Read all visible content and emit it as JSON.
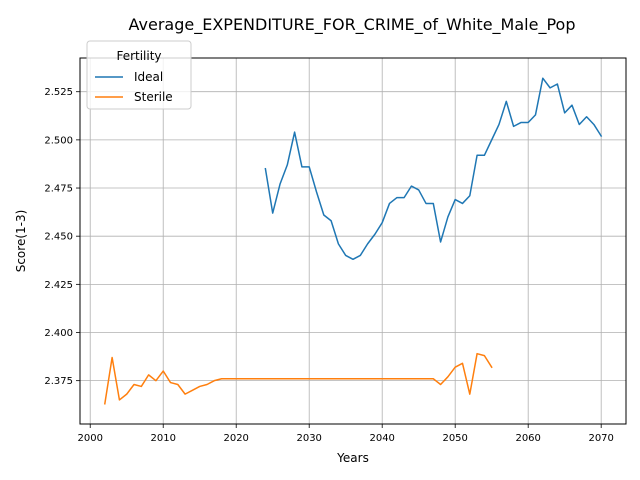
{
  "chart_data": {
    "type": "line",
    "title": "Average_EXPENDITURE_FOR_CRIME_of_White_Male_Pop",
    "xlabel": "Years",
    "ylabel": "Score(1-3)",
    "xlim": [
      1998.6,
      2073.4
    ],
    "ylim": [
      2.3525,
      2.5425
    ],
    "xticks": [
      2000,
      2010,
      2020,
      2030,
      2040,
      2050,
      2060,
      2070
    ],
    "yticks": [
      2.375,
      2.4,
      2.425,
      2.45,
      2.475,
      2.5,
      2.525
    ],
    "ytick_labels": [
      "2.375",
      "2.400",
      "2.425",
      "2.450",
      "2.475",
      "2.500",
      "2.525"
    ],
    "grid": true,
    "legend": {
      "title": "Fertility",
      "placement": "top-left"
    },
    "series": [
      {
        "name": "Ideal",
        "color": "#1f77b4",
        "x": [
          2024,
          2025,
          2026,
          2027,
          2028,
          2029,
          2030,
          2031,
          2032,
          2033,
          2034,
          2035,
          2036,
          2037,
          2038,
          2039,
          2040,
          2041,
          2042,
          2043,
          2044,
          2045,
          2046,
          2047,
          2048,
          2049,
          2050,
          2051,
          2052,
          2053,
          2054,
          2055,
          2056,
          2057,
          2058,
          2059,
          2060,
          2061,
          2062,
          2063,
          2064,
          2065,
          2066,
          2067,
          2068,
          2069,
          2070
        ],
        "y": [
          2.485,
          2.462,
          2.477,
          2.487,
          2.504,
          2.486,
          2.486,
          2.473,
          2.461,
          2.458,
          2.446,
          2.44,
          2.438,
          2.44,
          2.446,
          2.451,
          2.457,
          2.467,
          2.47,
          2.47,
          2.476,
          2.474,
          2.467,
          2.467,
          2.447,
          2.46,
          2.469,
          2.467,
          2.471,
          2.492,
          2.492,
          2.5,
          2.508,
          2.52,
          2.507,
          2.509,
          2.509,
          2.513,
          2.532,
          2.527,
          2.529,
          2.514,
          2.518,
          2.508,
          2.512,
          2.508,
          2.502
        ]
      },
      {
        "name": "Sterile",
        "color": "#ff7f0e",
        "x": [
          2002,
          2003,
          2004,
          2005,
          2006,
          2007,
          2008,
          2009,
          2010,
          2011,
          2012,
          2013,
          2014,
          2015,
          2016,
          2017,
          2018,
          2019,
          2020,
          2021,
          2022,
          2023,
          2024,
          2025,
          2026,
          2027,
          2028,
          2029,
          2030,
          2031,
          2032,
          2033,
          2034,
          2035,
          2036,
          2037,
          2038,
          2039,
          2040,
          2041,
          2042,
          2043,
          2044,
          2045,
          2046,
          2047,
          2048,
          2049,
          2050,
          2051,
          2052,
          2053,
          2054,
          2055
        ],
        "y": [
          2.363,
          2.387,
          2.365,
          2.368,
          2.373,
          2.372,
          2.378,
          2.375,
          2.38,
          2.374,
          2.373,
          2.368,
          2.37,
          2.372,
          2.373,
          2.375,
          2.376,
          2.376,
          2.376,
          2.376,
          2.376,
          2.376,
          2.376,
          2.376,
          2.376,
          2.376,
          2.376,
          2.376,
          2.376,
          2.376,
          2.376,
          2.376,
          2.376,
          2.376,
          2.376,
          2.376,
          2.376,
          2.376,
          2.376,
          2.376,
          2.376,
          2.376,
          2.376,
          2.376,
          2.376,
          2.376,
          2.373,
          2.377,
          2.382,
          2.384,
          2.368,
          2.389,
          2.388,
          2.382
        ]
      }
    ]
  }
}
